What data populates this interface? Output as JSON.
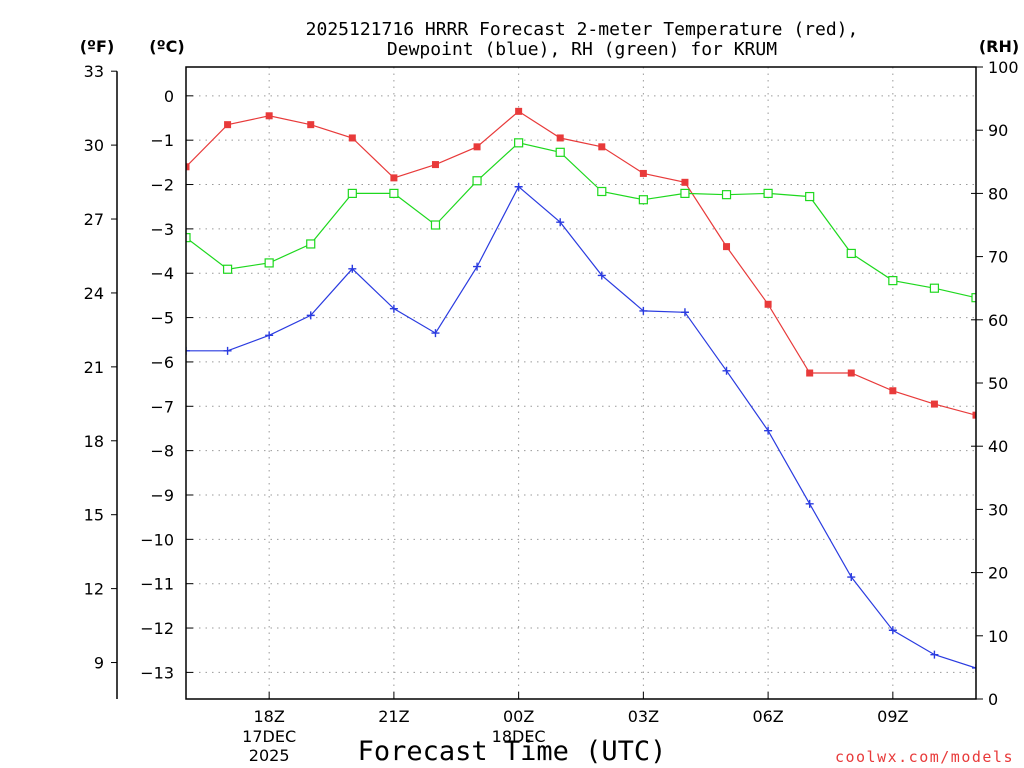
{
  "chart_data": {
    "type": "line",
    "title_line1": "2025121716 HRRR Forecast 2-meter Temperature (red),",
    "title_line2": "Dewpoint (blue), RH (green) for KRUM",
    "xlabel": "Forecast Time (UTC)",
    "watermark": "coolwx.com/models",
    "unit_f": "(ºF)",
    "unit_c": "(ºC)",
    "unit_rh": "(RH)",
    "x_hours": [
      15,
      16,
      17,
      18,
      19,
      20,
      21,
      22,
      23,
      24,
      25,
      26,
      27,
      28,
      29,
      30,
      31,
      32,
      33,
      34
    ],
    "xlim": [
      15,
      34
    ],
    "x_ticks": [
      {
        "x": 17,
        "label": "18Z",
        "sub1": "17DEC",
        "sub2": "2025"
      },
      {
        "x": 20,
        "label": "21Z"
      },
      {
        "x": 23,
        "label": "00Z",
        "sub1": "18DEC"
      },
      {
        "x": 26,
        "label": "03Z"
      },
      {
        "x": 29,
        "label": "06Z"
      },
      {
        "x": 32,
        "label": "09Z"
      }
    ],
    "celsius_ticks": [
      0,
      -1,
      -2,
      -3,
      -4,
      -5,
      -6,
      -7,
      -8,
      -9,
      -10,
      -11,
      -12,
      -13
    ],
    "celsius_labels": [
      "0",
      "−1",
      "−2",
      "−3",
      "−4",
      "−5",
      "−6",
      "−7",
      "−8",
      "−9",
      "−10",
      "−11",
      "−12",
      "−13"
    ],
    "fahrenheit_ticks": [
      "33",
      "30",
      "27",
      "24",
      "21",
      "18",
      "15",
      "12",
      "9"
    ],
    "fahrenheit_values": [
      33,
      30,
      27,
      24,
      21,
      18,
      15,
      12,
      9
    ],
    "rh_ticks": [
      100,
      90,
      80,
      70,
      60,
      50,
      40,
      30,
      20,
      10,
      0
    ],
    "rh_labels": [
      "100",
      "90",
      "80",
      "70",
      "60",
      "50",
      "40",
      "30",
      "20",
      "10",
      "0"
    ],
    "ylim_celsius": [
      -13.6,
      0.65
    ],
    "ylim_rh": [
      0,
      100
    ],
    "series": [
      {
        "name": "Temperature",
        "unit": "C",
        "color": "#e83a3a",
        "marker": "filled-square",
        "values": [
          -1.6,
          -0.65,
          -0.45,
          -0.65,
          -0.95,
          -1.85,
          -1.55,
          -1.15,
          -0.35,
          -0.95,
          -1.15,
          -1.75,
          -1.95,
          -3.4,
          -4.7,
          -6.25,
          -6.25,
          -6.65,
          -6.95,
          -7.2
        ]
      },
      {
        "name": "Dewpoint",
        "unit": "C",
        "color": "#2a3be0",
        "marker": "plus",
        "values": [
          -5.75,
          -5.75,
          -5.4,
          -4.95,
          -3.9,
          -4.8,
          -5.35,
          -3.85,
          -2.05,
          -2.85,
          -4.05,
          -4.85,
          -4.88,
          -6.2,
          -7.55,
          -9.2,
          -10.85,
          -12.05,
          -12.6,
          -12.9
        ]
      },
      {
        "name": "RH",
        "unit": "%",
        "color": "#1ed81e",
        "marker": "open-square",
        "values": [
          73,
          68,
          69,
          72,
          80,
          80,
          75,
          82,
          88,
          86.5,
          80.3,
          79,
          80,
          79.8,
          80,
          79.5,
          70.5,
          66.2,
          65,
          63.5
        ]
      }
    ]
  }
}
